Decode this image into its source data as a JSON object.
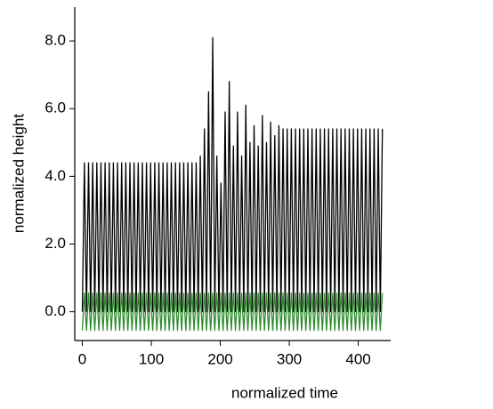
{
  "chart_data": {
    "type": "line",
    "xlabel": "normalized time",
    "ylabel": "normalized height",
    "x": [
      0,
      3,
      6,
      9,
      12,
      15,
      18,
      21,
      24,
      27,
      30,
      33,
      36,
      39,
      42,
      45,
      48,
      51,
      54,
      57,
      60,
      63,
      66,
      69,
      72,
      75,
      78,
      81,
      84,
      87,
      90,
      93,
      96,
      99,
      102,
      105,
      108,
      111,
      114,
      117,
      120,
      123,
      126,
      129,
      132,
      135,
      138,
      141,
      144,
      147,
      150,
      153,
      156,
      159,
      162,
      165,
      168,
      171,
      174,
      177,
      180,
      183,
      186,
      189,
      192,
      195,
      198,
      201,
      204,
      207,
      210,
      213,
      216,
      219,
      222,
      225,
      228,
      231,
      234,
      237,
      240,
      243,
      246,
      249,
      252,
      255,
      258,
      261,
      264,
      267,
      270,
      273,
      276,
      279,
      282,
      285,
      288,
      291,
      294,
      297,
      300,
      303,
      306,
      309,
      312,
      315,
      318,
      321,
      324,
      327,
      330,
      333,
      336,
      339,
      342,
      345,
      348,
      351,
      354,
      357,
      360,
      363,
      366,
      369,
      372,
      375,
      378,
      381,
      384,
      387,
      390,
      393,
      396,
      399,
      402,
      405,
      408,
      411,
      414,
      417,
      420,
      423,
      426,
      429,
      432,
      435
    ],
    "series": [
      {
        "color": "#000000",
        "values": [
          0,
          4.4,
          0,
          4.4,
          0,
          4.4,
          0,
          4.4,
          0,
          4.4,
          0,
          4.4,
          0,
          4.4,
          0,
          4.4,
          0,
          4.4,
          0,
          4.4,
          0,
          4.4,
          0,
          4.4,
          0,
          4.4,
          0,
          4.4,
          0,
          4.4,
          0,
          4.4,
          0,
          4.4,
          0,
          4.4,
          0,
          4.4,
          0,
          4.4,
          0,
          4.4,
          0,
          4.4,
          0,
          4.4,
          0,
          4.4,
          0,
          4.4,
          0,
          4.4,
          0,
          4.4,
          0,
          4.4,
          0,
          4.6,
          0,
          5.4,
          0,
          6.5,
          0,
          8.1,
          0,
          4.6,
          0,
          3.8,
          0,
          5.9,
          0,
          6.8,
          0,
          4.9,
          0,
          5.9,
          0,
          4.6,
          0,
          6.1,
          0,
          5.0,
          0,
          5.5,
          0,
          4.9,
          0,
          5.8,
          0,
          5.0,
          0,
          5.6,
          0,
          5.2,
          0,
          5.5,
          0,
          5.4,
          0,
          5.4,
          0,
          5.4,
          0,
          5.4,
          0,
          5.4,
          0,
          5.4,
          0,
          5.4,
          0,
          5.4,
          0,
          5.4,
          0,
          5.4,
          0,
          5.4,
          0,
          5.4,
          0,
          5.4,
          0,
          5.4,
          0,
          5.4,
          0,
          5.4,
          0,
          5.4,
          0,
          5.4,
          0,
          5.4,
          0,
          5.4,
          0,
          5.4,
          0,
          5.4,
          0,
          5.4,
          0,
          5.4,
          0,
          5.4
        ]
      },
      {
        "color": "#2e8b2e",
        "values": [
          -0.55,
          0.55,
          -0.55,
          0.55,
          -0.55,
          0.55,
          -0.55,
          0.55,
          -0.55,
          0.55,
          -0.55,
          0.55,
          -0.55,
          0.55,
          -0.55,
          0.55,
          -0.55,
          0.55,
          -0.55,
          0.55,
          -0.55,
          0.55,
          -0.55,
          0.55,
          -0.55,
          0.55,
          -0.55,
          0.55,
          -0.55,
          0.55,
          -0.55,
          0.55,
          -0.55,
          0.55,
          -0.55,
          0.55,
          -0.55,
          0.55,
          -0.55,
          0.55,
          -0.55,
          0.55,
          -0.55,
          0.55,
          -0.55,
          0.55,
          -0.55,
          0.55,
          -0.55,
          0.55,
          -0.55,
          0.55,
          -0.55,
          0.55,
          -0.55,
          0.55,
          -0.55,
          0.55,
          -0.55,
          0.55,
          -0.55,
          0.55,
          -0.55,
          0.55,
          -0.55,
          0.55,
          -0.55,
          0.55,
          -0.55,
          0.55,
          -0.55,
          0.55,
          -0.55,
          0.55,
          -0.55,
          0.55,
          -0.55,
          0.55,
          -0.55,
          0.55,
          -0.55,
          0.55,
          -0.55,
          0.55,
          -0.55,
          0.55,
          -0.55,
          0.55,
          -0.55,
          0.55,
          -0.55,
          0.55,
          -0.55,
          0.55,
          -0.55,
          0.55,
          -0.55,
          0.55,
          -0.55,
          0.55,
          -0.55,
          0.55,
          -0.55,
          0.55,
          -0.55,
          0.55,
          -0.55,
          0.55,
          -0.55,
          0.55,
          -0.55,
          0.55,
          -0.55,
          0.55,
          -0.55,
          0.55,
          -0.55,
          0.55,
          -0.55,
          0.55,
          -0.55,
          0.55,
          -0.55,
          0.55,
          -0.55,
          0.55,
          -0.55,
          0.55,
          -0.55,
          0.55,
          -0.55,
          0.55,
          -0.55,
          0.55,
          -0.55,
          0.55,
          -0.55,
          0.55,
          -0.55,
          0.55,
          -0.55,
          0.55,
          -0.55,
          0.55,
          -0.55,
          0.55
        ]
      }
    ],
    "xlim": [
      -11,
      447
    ],
    "xticks": [
      0,
      100,
      200,
      300,
      400
    ],
    "ylim": [
      -0.85,
      9
    ],
    "yticks": [
      {
        "value": 0,
        "label": "0.0"
      },
      {
        "value": 2,
        "label": "2.0"
      },
      {
        "value": 4,
        "label": "4.0"
      },
      {
        "value": 6,
        "label": "6.0"
      },
      {
        "value": 8,
        "label": "8.0"
      }
    ]
  }
}
